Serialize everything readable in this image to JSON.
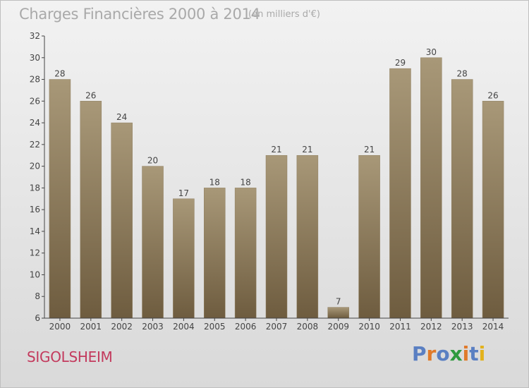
{
  "header": {
    "title": "Charges Financières 2000 à 2014",
    "subtitle": "(en milliers d'€)"
  },
  "footer": {
    "city": "SIGOLSHEIM",
    "logo_text": "Proxiti"
  },
  "colors": {
    "bar_top": "#a89878",
    "bar_bottom": "#6e5c3f",
    "axis": "#444444",
    "city": "#c33a5d",
    "logo_letters": [
      "#5a7fc2",
      "#e07a2a",
      "#5a7fc2",
      "#2f9a3f",
      "#e07a2a",
      "#5a7fc2",
      "#e3b21c"
    ]
  },
  "chart_data": {
    "type": "bar",
    "categories": [
      "2000",
      "2001",
      "2002",
      "2003",
      "2004",
      "2005",
      "2006",
      "2007",
      "2008",
      "2009",
      "2010",
      "2011",
      "2012",
      "2013",
      "2014"
    ],
    "values": [
      28,
      26,
      24,
      20,
      17,
      18,
      18,
      21,
      21,
      7,
      21,
      29,
      30,
      28,
      26
    ],
    "data_labels": [
      "28",
      "26",
      "24",
      "20",
      "17",
      "18",
      "18",
      "21",
      "21",
      "7",
      "21",
      "29",
      "30",
      "28",
      "26"
    ],
    "title": "Charges Financières 2000 à 2014",
    "ylim": [
      6,
      32
    ],
    "yticks": [
      6,
      8,
      10,
      12,
      14,
      16,
      18,
      20,
      22,
      24,
      26,
      28,
      30,
      32
    ],
    "grid": false
  }
}
